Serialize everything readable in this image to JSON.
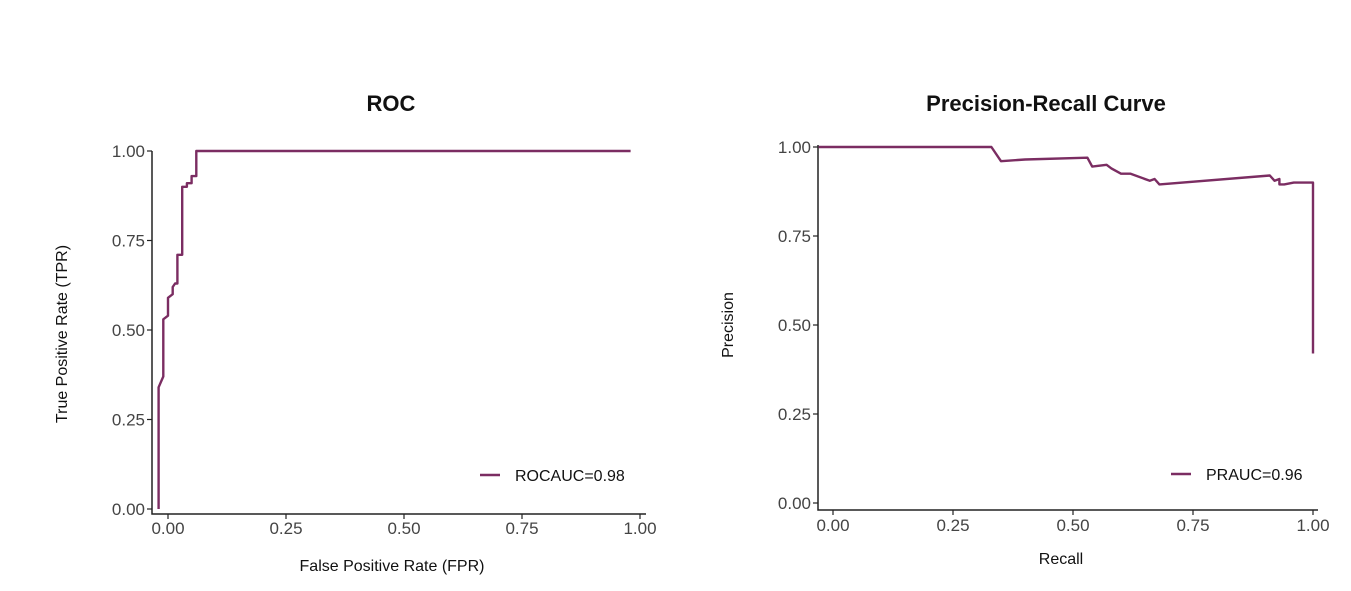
{
  "colors": {
    "curve": "#7b2d62",
    "axis": "#222222"
  },
  "chart_data": [
    {
      "type": "line",
      "title": "ROC",
      "xlabel": "False Positive Rate  (FPR)",
      "ylabel": "True Positive Rate  (TPR)",
      "xlim": [
        -0.03,
        1.0
      ],
      "ylim": [
        0,
        1
      ],
      "xticks": [
        "0.00",
        "0.25",
        "0.50",
        "0.75",
        "1.00"
      ],
      "yticks": [
        "0.00",
        "0.25",
        "0.50",
        "0.75",
        "1.00"
      ],
      "grid": false,
      "legend_position": "bottom-right",
      "series": [
        {
          "name": "ROCAUC=0.98",
          "x": [
            -0.02,
            -0.02,
            -0.01,
            -0.01,
            0.0,
            0.0,
            0.01,
            0.01,
            0.015,
            0.02,
            0.02,
            0.03,
            0.03,
            0.04,
            0.04,
            0.05,
            0.05,
            0.06,
            0.06,
            0.98
          ],
          "y": [
            0.0,
            0.34,
            0.37,
            0.53,
            0.54,
            0.59,
            0.6,
            0.62,
            0.63,
            0.63,
            0.71,
            0.71,
            0.9,
            0.9,
            0.91,
            0.91,
            0.93,
            0.93,
            1.0,
            1.0
          ]
        }
      ]
    },
    {
      "type": "line",
      "title": "Precision-Recall Curve",
      "xlabel": "Recall",
      "ylabel": "Precision",
      "xlim": [
        -0.03,
        1.0
      ],
      "ylim": [
        0,
        1
      ],
      "xticks": [
        "0.00",
        "0.25",
        "0.50",
        "0.75",
        "1.00"
      ],
      "yticks": [
        "0.00",
        "0.25",
        "0.50",
        "0.75",
        "1.00"
      ],
      "grid": false,
      "legend_position": "bottom-right",
      "series": [
        {
          "name": "PRAUC=0.96",
          "x": [
            -0.03,
            0.33,
            0.35,
            0.4,
            0.53,
            0.54,
            0.57,
            0.58,
            0.6,
            0.62,
            0.66,
            0.67,
            0.68,
            0.91,
            0.92,
            0.93,
            0.93,
            0.94,
            0.96,
            1.0,
            1.0
          ],
          "y": [
            1.0,
            1.0,
            0.96,
            0.965,
            0.97,
            0.945,
            0.95,
            0.94,
            0.925,
            0.925,
            0.905,
            0.91,
            0.895,
            0.92,
            0.905,
            0.91,
            0.895,
            0.895,
            0.9,
            0.9,
            0.42
          ]
        }
      ]
    }
  ]
}
